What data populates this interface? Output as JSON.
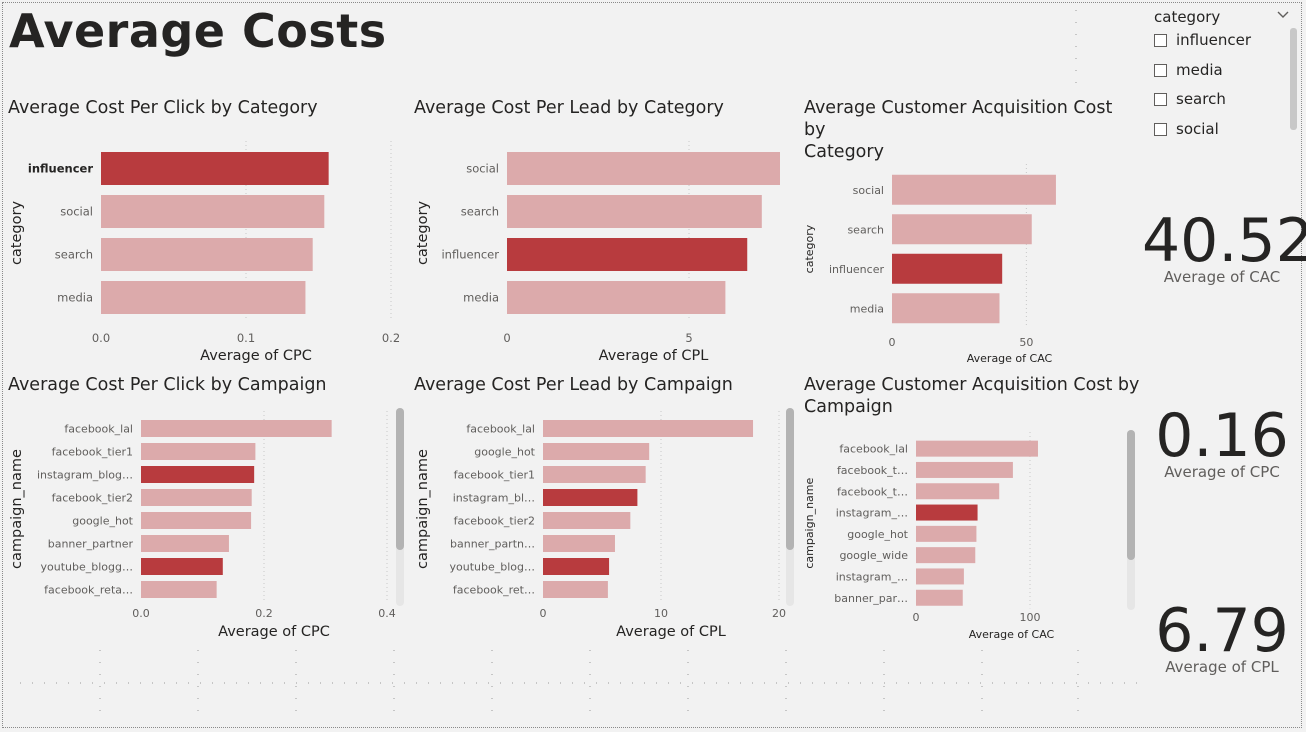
{
  "page": {
    "title": "Average Costs"
  },
  "colors": {
    "highlight": "#b83b3e",
    "normal": "#dcaaab",
    "axis_text": "#605e5c",
    "text": "#252423"
  },
  "slicer": {
    "header": "category",
    "items": [
      "influencer",
      "media",
      "search",
      "social"
    ]
  },
  "cards": [
    {
      "value": "40.52",
      "label": "Average of CAC"
    },
    {
      "value": "0.16",
      "label": "Average of CPC"
    },
    {
      "value": "6.79",
      "label": "Average of CPL"
    }
  ],
  "chart_data": [
    {
      "type": "bar",
      "title": "Average Cost Per Click by Category",
      "ylabel": "category",
      "xlabel": "Average of CPC",
      "categories": [
        "influencer",
        "social",
        "search",
        "media"
      ],
      "values": [
        0.157,
        0.154,
        0.146,
        0.141
      ],
      "highlight": [
        true,
        false,
        false,
        false
      ],
      "xlim": [
        0,
        0.2
      ],
      "ticks": [
        0,
        0.1,
        0.2
      ],
      "tick_labels": [
        "0.0",
        "0.1",
        "0.2"
      ]
    },
    {
      "type": "bar",
      "title": "Average Cost Per Lead by Category",
      "ylabel": "category",
      "xlabel": "Average of CPL",
      "categories": [
        "social",
        "search",
        "influencer",
        "media"
      ],
      "values": [
        7.5,
        7.0,
        6.6,
        6.0
      ],
      "highlight": [
        false,
        false,
        true,
        false
      ],
      "xlim": [
        0,
        7.5
      ],
      "ticks": [
        0,
        5
      ],
      "tick_labels": [
        "0",
        "5"
      ]
    },
    {
      "type": "bar",
      "title": "Average Customer Acquisition Cost by\nCategory",
      "ylabel": "category",
      "xlabel": "Average of CAC",
      "categories": [
        "social",
        "search",
        "influencer",
        "media"
      ],
      "values": [
        61,
        52,
        41,
        40
      ],
      "highlight": [
        false,
        false,
        true,
        false
      ],
      "xlim": [
        0,
        80
      ],
      "ticks": [
        0,
        50
      ],
      "tick_labels": [
        "0",
        "50"
      ]
    },
    {
      "type": "bar",
      "title": "Average Cost Per Click by Campaign",
      "ylabel": "campaign_name",
      "xlabel": "Average of CPC",
      "categories": [
        "facebook_lal",
        "facebook_tier1",
        "instagram_blog…",
        "facebook_tier2",
        "google_hot",
        "banner_partner",
        "youtube_blogg…",
        "facebook_reta…"
      ],
      "values": [
        0.31,
        0.186,
        0.184,
        0.18,
        0.179,
        0.143,
        0.133,
        0.123
      ],
      "highlight": [
        false,
        false,
        true,
        false,
        false,
        false,
        true,
        false
      ],
      "xlim": [
        0,
        0.4
      ],
      "ticks": [
        0,
        0.2,
        0.4
      ],
      "tick_labels": [
        "0.0",
        "0.2",
        "0.4"
      ]
    },
    {
      "type": "bar",
      "title": "Average Cost Per Lead by Campaign",
      "ylabel": "campaign_name",
      "xlabel": "Average of CPL",
      "categories": [
        "facebook_lal",
        "google_hot",
        "facebook_tier1",
        "instagram_bl…",
        "facebook_tier2",
        "banner_partn…",
        "youtube_blog…",
        "facebook_ret…"
      ],
      "values": [
        17.8,
        9.0,
        8.7,
        8.0,
        7.4,
        6.1,
        5.6,
        5.5
      ],
      "highlight": [
        false,
        false,
        false,
        true,
        false,
        false,
        true,
        false
      ],
      "xlim": [
        0,
        20
      ],
      "ticks": [
        0,
        10,
        20
      ],
      "tick_labels": [
        "0",
        "10",
        "20"
      ]
    },
    {
      "type": "bar",
      "title": "Average Customer Acquisition Cost by\nCampaign",
      "ylabel": "campaign_name",
      "xlabel": "Average of CAC",
      "categories": [
        "facebook_lal",
        "facebook_t…",
        "facebook_t…",
        "instagram_…",
        "google_hot",
        "google_wide",
        "instagram_…",
        "banner_par…"
      ],
      "values": [
        107,
        85,
        73,
        54,
        53,
        52,
        42,
        41
      ],
      "highlight": [
        false,
        false,
        false,
        true,
        false,
        false,
        false,
        false
      ],
      "xlim": [
        0,
        150
      ],
      "ticks": [
        0,
        100
      ],
      "tick_labels": [
        "0",
        "100"
      ]
    }
  ]
}
